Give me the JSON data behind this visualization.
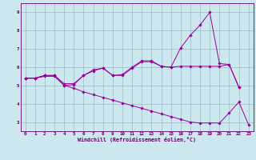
{
  "xlabel": "Windchill (Refroidissement éolien,°C)",
  "x": [
    0,
    1,
    2,
    3,
    4,
    5,
    6,
    7,
    8,
    9,
    10,
    11,
    12,
    13,
    14,
    15,
    16,
    17,
    18,
    19,
    20,
    21,
    22,
    23
  ],
  "line1": [
    5.4,
    5.4,
    5.55,
    5.55,
    5.0,
    5.05,
    5.55,
    5.8,
    5.95,
    5.55,
    5.6,
    6.0,
    6.35,
    6.35,
    6.05,
    6.0,
    7.05,
    7.75,
    8.3,
    9.0,
    6.2,
    6.15,
    4.9,
    null
  ],
  "line2": [
    5.4,
    5.4,
    5.55,
    5.55,
    5.1,
    5.1,
    5.55,
    5.85,
    5.95,
    5.55,
    5.55,
    5.95,
    6.3,
    6.3,
    6.05,
    6.0,
    6.05,
    6.05,
    6.05,
    6.05,
    6.05,
    6.15,
    4.9,
    null
  ],
  "line3": [
    5.4,
    5.4,
    5.5,
    5.5,
    5.0,
    4.85,
    4.65,
    4.5,
    4.35,
    4.2,
    4.05,
    3.9,
    3.75,
    3.6,
    3.45,
    3.3,
    3.15,
    3.0,
    2.95,
    2.95,
    2.95,
    3.5,
    4.1,
    2.85
  ],
  "ylim": [
    2.5,
    9.5
  ],
  "xlim": [
    -0.5,
    23.5
  ],
  "yticks": [
    3,
    4,
    5,
    6,
    7,
    8,
    9
  ],
  "xticks": [
    0,
    1,
    2,
    3,
    4,
    5,
    6,
    7,
    8,
    9,
    10,
    11,
    12,
    13,
    14,
    15,
    16,
    17,
    18,
    19,
    20,
    21,
    22,
    23
  ],
  "line_color": "#990099",
  "bg_color": "#cce8ee",
  "grid_color": "#99bbcc",
  "tick_color": "#660066",
  "label_color": "#660066"
}
